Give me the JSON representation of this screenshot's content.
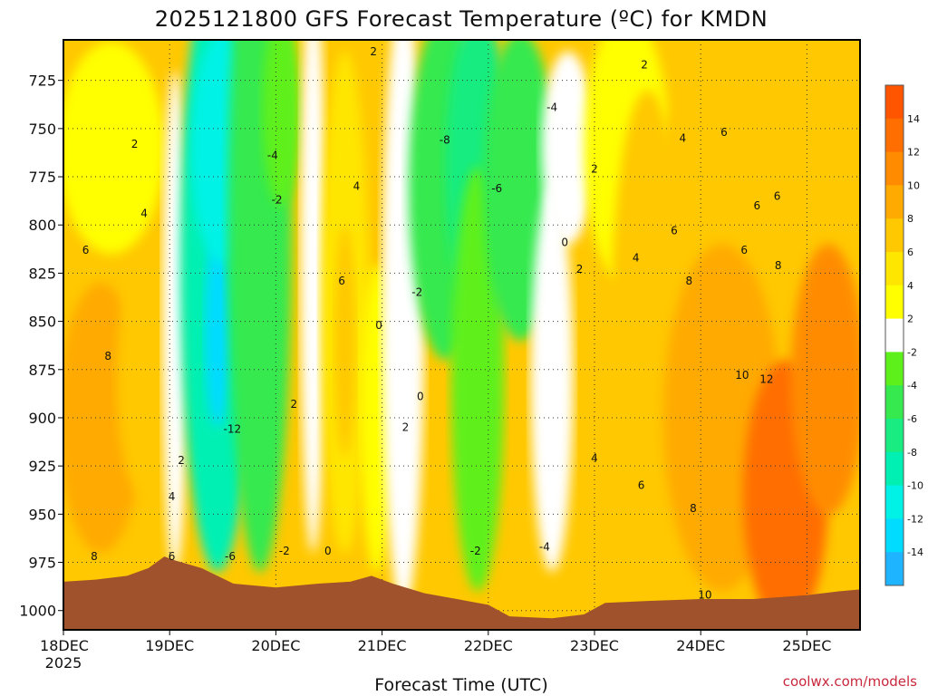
{
  "chart_data": {
    "type": "heatmap",
    "title": "2025121800 GFS Forecast Temperature (ºC) for KMDN",
    "xlabel": "Forecast Time (UTC)",
    "ylabel": "",
    "x_ticks": [
      {
        "label": "18DEC",
        "sub": "2025",
        "day": 0
      },
      {
        "label": "19DEC",
        "sub": "",
        "day": 1
      },
      {
        "label": "20DEC",
        "sub": "",
        "day": 2
      },
      {
        "label": "21DEC",
        "sub": "",
        "day": 3
      },
      {
        "label": "22DEC",
        "sub": "",
        "day": 4
      },
      {
        "label": "23DEC",
        "sub": "",
        "day": 5
      },
      {
        "label": "24DEC",
        "sub": "",
        "day": 6
      },
      {
        "label": "25DEC",
        "sub": "",
        "day": 7
      }
    ],
    "xlim_days": [
      0,
      7.5
    ],
    "y_ticks": [
      725,
      750,
      775,
      800,
      825,
      850,
      875,
      900,
      925,
      950,
      975,
      1000
    ],
    "ylim_hPa": [
      704,
      1010
    ],
    "grid": true,
    "colorbar": {
      "bins": [
        {
          "lo": -16,
          "hi": -14,
          "color": "#1fb4ff"
        },
        {
          "lo": -14,
          "hi": -12,
          "color": "#00dcff"
        },
        {
          "lo": -12,
          "hi": -10,
          "color": "#00f2e6"
        },
        {
          "lo": -10,
          "hi": -8,
          "color": "#00f0b4"
        },
        {
          "lo": -8,
          "hi": -6,
          "color": "#19ec80"
        },
        {
          "lo": -6,
          "hi": -4,
          "color": "#36e94f"
        },
        {
          "lo": -4,
          "hi": -2,
          "color": "#5ef01a"
        },
        {
          "lo": -2,
          "hi": 2,
          "color": "#ffffff"
        },
        {
          "lo": 2,
          "hi": 4,
          "color": "#ffff00"
        },
        {
          "lo": 4,
          "hi": 6,
          "color": "#ffe600"
        },
        {
          "lo": 6,
          "hi": 8,
          "color": "#ffc800"
        },
        {
          "lo": 8,
          "hi": 10,
          "color": "#ffaa00"
        },
        {
          "lo": 10,
          "hi": 12,
          "color": "#ff8c00"
        },
        {
          "lo": 12,
          "hi": 14,
          "color": "#ff6e00"
        },
        {
          "lo": 14,
          "hi": 16,
          "color": "#ff5500"
        }
      ],
      "tick_labels": [
        "14",
        "12",
        "10",
        "8",
        "6",
        "4",
        "2",
        "-2",
        "-4",
        "-6",
        "-8",
        "-10",
        "-12",
        "-14"
      ]
    },
    "terrain_color": "#a0522d",
    "terrain_hPa": [
      [
        0,
        985
      ],
      [
        0.3,
        984
      ],
      [
        0.6,
        982
      ],
      [
        0.8,
        978
      ],
      [
        0.95,
        972
      ],
      [
        1.05,
        974
      ],
      [
        1.3,
        978
      ],
      [
        1.6,
        986
      ],
      [
        2.0,
        988
      ],
      [
        2.4,
        986
      ],
      [
        2.7,
        985
      ],
      [
        2.9,
        982
      ],
      [
        3.1,
        986
      ],
      [
        3.4,
        991
      ],
      [
        3.8,
        995
      ],
      [
        4.0,
        997
      ],
      [
        4.2,
        1003
      ],
      [
        4.6,
        1004
      ],
      [
        4.9,
        1002
      ],
      [
        5.1,
        996
      ],
      [
        5.5,
        995
      ],
      [
        6.0,
        994
      ],
      [
        6.5,
        994
      ],
      [
        7.0,
        992
      ],
      [
        7.3,
        990
      ],
      [
        7.5,
        989
      ]
    ],
    "contour_labels": [
      {
        "text": "2",
        "day": 0.67,
        "p": 758
      },
      {
        "text": "4",
        "day": 0.76,
        "p": 794
      },
      {
        "text": "6",
        "day": 0.21,
        "p": 813
      },
      {
        "text": "8",
        "day": 0.42,
        "p": 868
      },
      {
        "text": "8",
        "day": 0.29,
        "p": 972
      },
      {
        "text": "2",
        "day": 1.11,
        "p": 922
      },
      {
        "text": "4",
        "day": 1.02,
        "p": 941
      },
      {
        "text": "6",
        "day": 1.02,
        "p": 972
      },
      {
        "text": "-12",
        "day": 1.59,
        "p": 906
      },
      {
        "text": "-6",
        "day": 1.57,
        "p": 972
      },
      {
        "text": "-4",
        "day": 1.97,
        "p": 764
      },
      {
        "text": "-2",
        "day": 2.01,
        "p": 787
      },
      {
        "text": "-2",
        "day": 2.08,
        "p": 969
      },
      {
        "text": "2",
        "day": 2.17,
        "p": 893
      },
      {
        "text": "0",
        "day": 2.49,
        "p": 969
      },
      {
        "text": "4",
        "day": 2.76,
        "p": 780
      },
      {
        "text": "6",
        "day": 2.62,
        "p": 829
      },
      {
        "text": "2",
        "day": 2.92,
        "p": 710
      },
      {
        "text": "0",
        "day": 2.97,
        "p": 852
      },
      {
        "text": "-2",
        "day": 3.33,
        "p": 835
      },
      {
        "text": "0",
        "day": 3.36,
        "p": 889
      },
      {
        "text": "2",
        "day": 3.22,
        "p": 905
      },
      {
        "text": "-8",
        "day": 3.59,
        "p": 756
      },
      {
        "text": "-6",
        "day": 4.08,
        "p": 781
      },
      {
        "text": "-4",
        "day": 4.6,
        "p": 739
      },
      {
        "text": "-2",
        "day": 3.88,
        "p": 969
      },
      {
        "text": "-4",
        "day": 4.53,
        "p": 967
      },
      {
        "text": "0",
        "day": 4.72,
        "p": 809
      },
      {
        "text": "2",
        "day": 4.86,
        "p": 823
      },
      {
        "text": "2",
        "day": 5.0,
        "p": 771
      },
      {
        "text": "4",
        "day": 5.0,
        "p": 921
      },
      {
        "text": "4",
        "day": 5.39,
        "p": 817
      },
      {
        "text": "2",
        "day": 5.47,
        "p": 717
      },
      {
        "text": "4",
        "day": 5.83,
        "p": 755
      },
      {
        "text": "6",
        "day": 6.22,
        "p": 752
      },
      {
        "text": "6",
        "day": 5.75,
        "p": 803
      },
      {
        "text": "6",
        "day": 5.44,
        "p": 935
      },
      {
        "text": "6",
        "day": 6.53,
        "p": 790
      },
      {
        "text": "6",
        "day": 6.72,
        "p": 785
      },
      {
        "text": "6",
        "day": 6.41,
        "p": 813
      },
      {
        "text": "8",
        "day": 5.89,
        "p": 829
      },
      {
        "text": "8",
        "day": 6.73,
        "p": 821
      },
      {
        "text": "8",
        "day": 5.93,
        "p": 947
      },
      {
        "text": "10",
        "day": 6.39,
        "p": 878
      },
      {
        "text": "12",
        "day": 6.62,
        "p": 880
      },
      {
        "text": "10",
        "day": 6.04,
        "p": 992
      }
    ]
  },
  "footer": {
    "credit": "coolwx.com/models"
  }
}
